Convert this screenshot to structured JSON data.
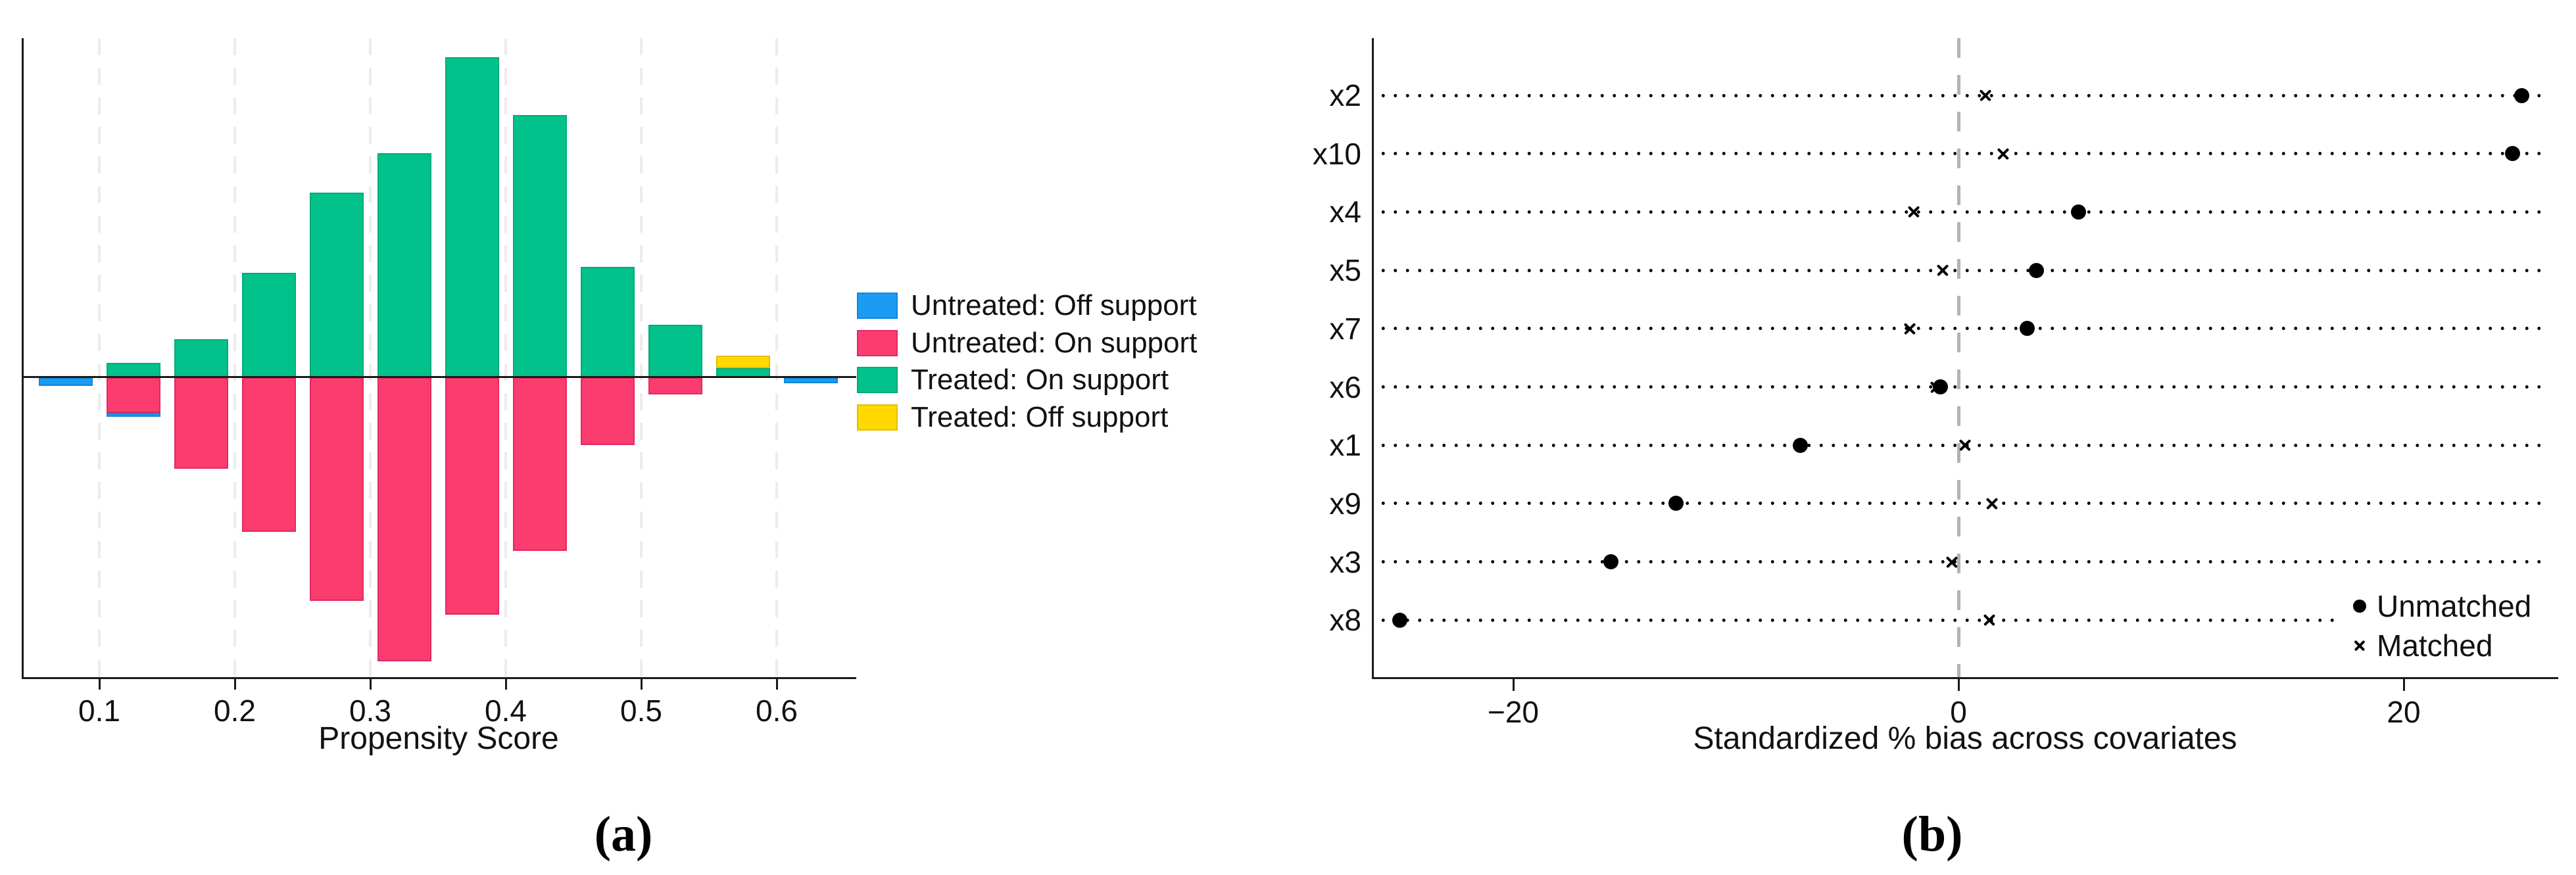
{
  "panels": {
    "a": {
      "label": "(a)"
    },
    "b": {
      "label": "(b)"
    }
  },
  "colors": {
    "untreated_off_support": "#1b9cf2",
    "untreated_on_support": "#fb3c6e",
    "treated_on_support": "#02c28c",
    "treated_off_support": "#ffd900",
    "untreated_off_support_edge": "#0e86d8",
    "untreated_on_support_edge": "#e02a5f",
    "treated_on_support_edge": "#00a97b",
    "treated_off_support_edge": "#e3bf00",
    "axis_line": "#1a1a1a",
    "gridline": "#ececec",
    "zero_dashed_line": "#b3b3b3",
    "marker_black": "#000000"
  },
  "chart_data": [
    {
      "type": "bar",
      "panel": "a",
      "subtype": "mirror-histogram",
      "xlabel": "Propensity Score",
      "x_ticks": [
        "0.1",
        "0.2",
        "0.3",
        "0.4",
        "0.5",
        "0.6"
      ],
      "x_tick_values": [
        0.1,
        0.2,
        0.3,
        0.4,
        0.5,
        0.6
      ],
      "bin_width": 0.05,
      "units_note": "bar heights are relative frequency units (no y scale shown); positive = treated drawn up, negative groups drawn down",
      "legend": [
        {
          "key": "untreated_off_support",
          "label": "Untreated: Off support"
        },
        {
          "key": "untreated_on_support",
          "label": "Untreated: On support"
        },
        {
          "key": "treated_on_support",
          "label": "Treated: On support"
        },
        {
          "key": "treated_off_support",
          "label": "Treated: Off support"
        }
      ],
      "bins": [
        {
          "center": 0.075,
          "treated_on": 0,
          "treated_off": 0,
          "untreated_on": 0,
          "untreated_off": 13
        },
        {
          "center": 0.125,
          "treated_on": 22,
          "treated_off": 0,
          "untreated_on": 54,
          "untreated_off": 6
        },
        {
          "center": 0.175,
          "treated_on": 58,
          "treated_off": 0,
          "untreated_on": 139,
          "untreated_off": 0
        },
        {
          "center": 0.225,
          "treated_on": 159,
          "treated_off": 0,
          "untreated_on": 235,
          "untreated_off": 0
        },
        {
          "center": 0.275,
          "treated_on": 281,
          "treated_off": 0,
          "untreated_on": 340,
          "untreated_off": 0
        },
        {
          "center": 0.325,
          "treated_on": 341,
          "treated_off": 0,
          "untreated_on": 432,
          "untreated_off": 0
        },
        {
          "center": 0.375,
          "treated_on": 487,
          "treated_off": 0,
          "untreated_on": 361,
          "untreated_off": 0
        },
        {
          "center": 0.425,
          "treated_on": 399,
          "treated_off": 0,
          "untreated_on": 264,
          "untreated_off": 0
        },
        {
          "center": 0.475,
          "treated_on": 168,
          "treated_off": 0,
          "untreated_on": 103,
          "untreated_off": 0
        },
        {
          "center": 0.525,
          "treated_on": 80,
          "treated_off": 0,
          "untreated_on": 26,
          "untreated_off": 0
        },
        {
          "center": 0.575,
          "treated_on": 14,
          "treated_off": 19,
          "untreated_on": 0,
          "untreated_off": 0
        },
        {
          "center": 0.625,
          "treated_on": 0,
          "treated_off": 0,
          "untreated_on": 0,
          "untreated_off": 9
        }
      ]
    },
    {
      "type": "scatter",
      "panel": "b",
      "subtype": "dot-plot",
      "xlabel": "Standardized % bias across covariates",
      "x_ticks": [
        "−20",
        "0",
        "20"
      ],
      "x_tick_values": [
        -20,
        0,
        20
      ],
      "xlim": [
        -26.5,
        27
      ],
      "zero_reference_line": 0,
      "legend": [
        {
          "key": "unmatched",
          "label": "Unmatched",
          "marker": "dot"
        },
        {
          "key": "matched",
          "label": "Matched",
          "marker": "x"
        }
      ],
      "rows": [
        {
          "label": "x2",
          "unmatched": 25.3,
          "matched": 1.2
        },
        {
          "label": "x10",
          "unmatched": 24.9,
          "matched": 2.0
        },
        {
          "label": "x4",
          "unmatched": 5.4,
          "matched": -2.0
        },
        {
          "label": "x5",
          "unmatched": 3.5,
          "matched": -0.7
        },
        {
          "label": "x7",
          "unmatched": 3.1,
          "matched": -2.2
        },
        {
          "label": "x6",
          "unmatched": -0.8,
          "matched": -1.0
        },
        {
          "label": "x1",
          "unmatched": -7.1,
          "matched": 0.3
        },
        {
          "label": "x9",
          "unmatched": -12.7,
          "matched": 1.5
        },
        {
          "label": "x3",
          "unmatched": -15.6,
          "matched": -0.3
        },
        {
          "label": "x8",
          "unmatched": -25.1,
          "matched": 1.4
        }
      ]
    }
  ]
}
